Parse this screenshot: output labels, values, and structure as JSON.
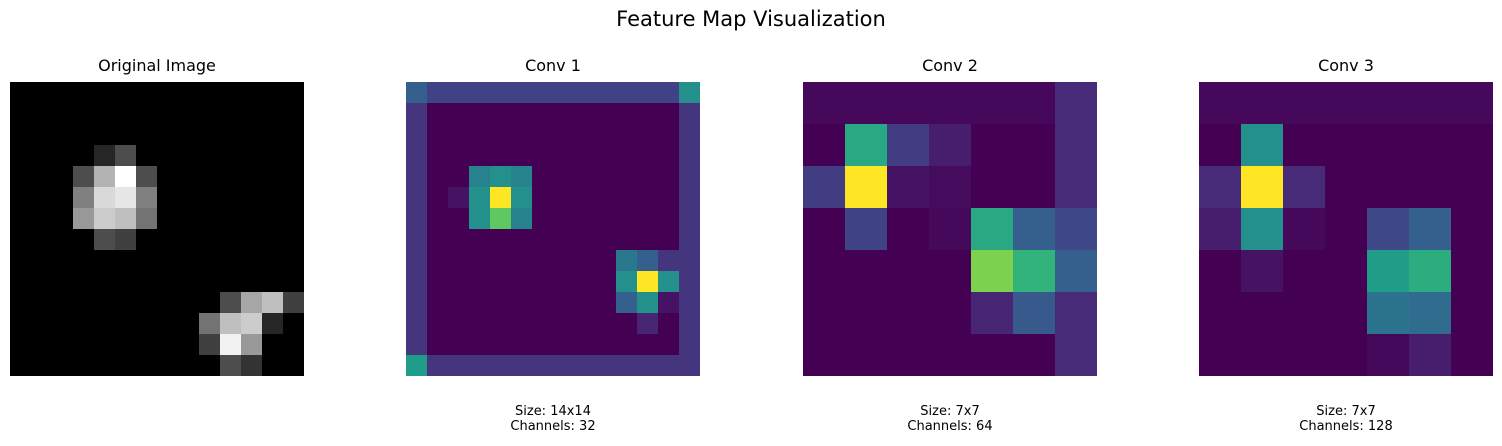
{
  "suptitle": "Feature Map Visualization",
  "colormaps": {
    "gray": [
      "#000000",
      "#ffffff"
    ],
    "viridis": [
      "#440154",
      "#482878",
      "#3e4989",
      "#31688e",
      "#26828e",
      "#1f9e89",
      "#35b779",
      "#6ece58",
      "#b5de2b",
      "#fde725"
    ]
  },
  "chart_data": [
    {
      "type": "heatmap",
      "title": "Original Image",
      "colormap": "gray",
      "size_label": "",
      "channels_label": "",
      "rows": 14,
      "cols": 14,
      "values": [
        [
          0,
          0,
          0,
          0,
          0,
          0,
          0,
          0,
          0,
          0,
          0,
          0,
          0,
          0
        ],
        [
          0,
          0,
          0,
          0,
          0,
          0,
          0,
          0,
          0,
          0,
          0,
          0,
          0,
          0
        ],
        [
          0,
          0,
          0,
          0,
          0,
          0,
          0,
          0,
          0,
          0,
          0,
          0,
          0,
          0
        ],
        [
          0,
          0,
          0,
          0,
          0.15,
          0.3,
          0,
          0,
          0,
          0,
          0,
          0,
          0,
          0
        ],
        [
          0,
          0,
          0,
          0.3,
          0.7,
          1.0,
          0.3,
          0,
          0,
          0,
          0,
          0,
          0,
          0
        ],
        [
          0,
          0,
          0,
          0.5,
          0.85,
          0.9,
          0.5,
          0,
          0,
          0,
          0,
          0,
          0,
          0
        ],
        [
          0,
          0,
          0,
          0.6,
          0.8,
          0.75,
          0.45,
          0,
          0,
          0,
          0,
          0,
          0,
          0
        ],
        [
          0,
          0,
          0,
          0,
          0.3,
          0.25,
          0,
          0,
          0,
          0,
          0,
          0,
          0,
          0
        ],
        [
          0,
          0,
          0,
          0,
          0,
          0,
          0,
          0,
          0,
          0,
          0,
          0,
          0,
          0
        ],
        [
          0,
          0,
          0,
          0,
          0,
          0,
          0,
          0,
          0,
          0,
          0,
          0,
          0,
          0
        ],
        [
          0,
          0,
          0,
          0,
          0,
          0,
          0,
          0,
          0,
          0,
          0.3,
          0.65,
          0.75,
          0.25
        ],
        [
          0,
          0,
          0,
          0,
          0,
          0,
          0,
          0,
          0,
          0.45,
          0.75,
          0.8,
          0.15,
          0
        ],
        [
          0,
          0,
          0,
          0,
          0,
          0,
          0,
          0,
          0,
          0.25,
          0.95,
          0.6,
          0,
          0
        ],
        [
          0,
          0,
          0,
          0,
          0,
          0,
          0,
          0,
          0,
          0,
          0.3,
          0.2,
          0,
          0
        ]
      ]
    },
    {
      "type": "heatmap",
      "title": "Conv 1",
      "colormap": "viridis",
      "size_label": "Size: 14x14",
      "channels_label": "Channels: 32",
      "rows": 14,
      "cols": 14,
      "values": [
        [
          0.3,
          0.2,
          0.2,
          0.2,
          0.2,
          0.2,
          0.2,
          0.2,
          0.2,
          0.2,
          0.2,
          0.2,
          0.2,
          0.5
        ],
        [
          0.15,
          0,
          0,
          0,
          0,
          0,
          0,
          0,
          0,
          0,
          0,
          0,
          0,
          0.15
        ],
        [
          0.15,
          0,
          0,
          0,
          0,
          0,
          0,
          0,
          0,
          0,
          0,
          0,
          0,
          0.15
        ],
        [
          0.15,
          0,
          0,
          0,
          0,
          0,
          0,
          0,
          0,
          0,
          0,
          0,
          0,
          0.15
        ],
        [
          0.15,
          0,
          0,
          0.45,
          0.5,
          0.45,
          0,
          0,
          0,
          0,
          0,
          0,
          0,
          0.15
        ],
        [
          0.15,
          0,
          0.05,
          0.5,
          1.0,
          0.5,
          0,
          0,
          0,
          0,
          0,
          0,
          0,
          0.15
        ],
        [
          0.15,
          0,
          0,
          0.5,
          0.75,
          0.45,
          0,
          0,
          0,
          0,
          0,
          0,
          0,
          0.15
        ],
        [
          0.15,
          0,
          0,
          0,
          0,
          0,
          0,
          0,
          0,
          0,
          0,
          0,
          0,
          0.15
        ],
        [
          0.15,
          0,
          0,
          0,
          0,
          0,
          0,
          0,
          0,
          0,
          0.4,
          0.3,
          0.15,
          0.15
        ],
        [
          0.15,
          0,
          0,
          0,
          0,
          0,
          0,
          0,
          0,
          0,
          0.5,
          1.0,
          0.5,
          0.15
        ],
        [
          0.15,
          0,
          0,
          0,
          0,
          0,
          0,
          0,
          0,
          0,
          0.3,
          0.5,
          0.05,
          0.15
        ],
        [
          0.15,
          0,
          0,
          0,
          0,
          0,
          0,
          0,
          0,
          0,
          0,
          0.1,
          0,
          0.15
        ],
        [
          0.15,
          0,
          0,
          0,
          0,
          0,
          0,
          0,
          0,
          0,
          0,
          0,
          0,
          0.15
        ],
        [
          0.55,
          0.15,
          0.15,
          0.15,
          0.15,
          0.15,
          0.15,
          0.15,
          0.15,
          0.15,
          0.15,
          0.15,
          0.15,
          0.15
        ]
      ]
    },
    {
      "type": "heatmap",
      "title": "Conv 2",
      "colormap": "viridis",
      "size_label": "Size: 7x7",
      "channels_label": "Channels: 64",
      "rows": 7,
      "cols": 7,
      "values": [
        [
          0.02,
          0.02,
          0.02,
          0.02,
          0.02,
          0.02,
          0.12
        ],
        [
          0,
          0.6,
          0.18,
          0.08,
          0,
          0,
          0.12
        ],
        [
          0.18,
          1.0,
          0.05,
          0.03,
          0,
          0,
          0.12
        ],
        [
          0,
          0.2,
          0,
          0.02,
          0.6,
          0.3,
          0.22
        ],
        [
          0,
          0,
          0,
          0,
          0.8,
          0.65,
          0.3
        ],
        [
          0,
          0,
          0,
          0,
          0.1,
          0.28,
          0.12
        ],
        [
          0,
          0,
          0,
          0,
          0,
          0,
          0.12
        ]
      ]
    },
    {
      "type": "heatmap",
      "title": "Conv 3",
      "colormap": "viridis",
      "size_label": "Size: 7x7",
      "channels_label": "Channels: 128",
      "rows": 7,
      "cols": 7,
      "values": [
        [
          0.02,
          0.02,
          0.02,
          0.02,
          0.02,
          0.02,
          0.02
        ],
        [
          0,
          0.5,
          0,
          0,
          0,
          0,
          0
        ],
        [
          0.12,
          1.0,
          0.12,
          0,
          0,
          0,
          0
        ],
        [
          0.08,
          0.5,
          0.02,
          0,
          0.22,
          0.3,
          0
        ],
        [
          0,
          0.05,
          0,
          0,
          0.55,
          0.62,
          0
        ],
        [
          0,
          0,
          0,
          0,
          0.38,
          0.35,
          0
        ],
        [
          0,
          0,
          0,
          0,
          0.02,
          0.08,
          0
        ]
      ]
    }
  ]
}
